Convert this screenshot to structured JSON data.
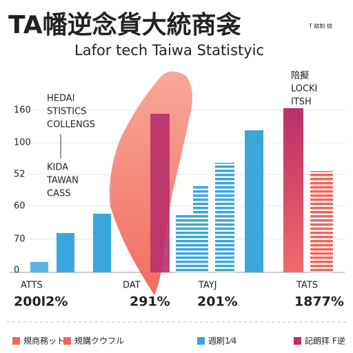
{
  "header": {
    "title": "TA幡逆念貨大統商衾",
    "badge": "T 結制 结",
    "subtitle": "Lafor tech Taiwa Statistyic"
  },
  "notes": {
    "left_top": [
      "HEDAI",
      "STISTICS",
      "COLLENGS"
    ],
    "left_bottom": [
      "KIDA",
      "TAWAN",
      "CASS"
    ],
    "right_top": [
      "陪擬",
      "LOCKI",
      "ITSH"
    ]
  },
  "axis_labels": [
    "160",
    "100",
    "52",
    "60",
    "70",
    "0"
  ],
  "groups": [
    {
      "label": "ATTS",
      "value": "200l2%"
    },
    {
      "label": "DAT",
      "value": "291%"
    },
    {
      "label": "TAYJ",
      "value": "201%"
    },
    {
      "label": "TATS",
      "value": "1877%"
    }
  ],
  "legend": [
    "規商務ット",
    "規購クウフル",
    "週刷1⁄4",
    "記朗拝 F逆"
  ]
}
